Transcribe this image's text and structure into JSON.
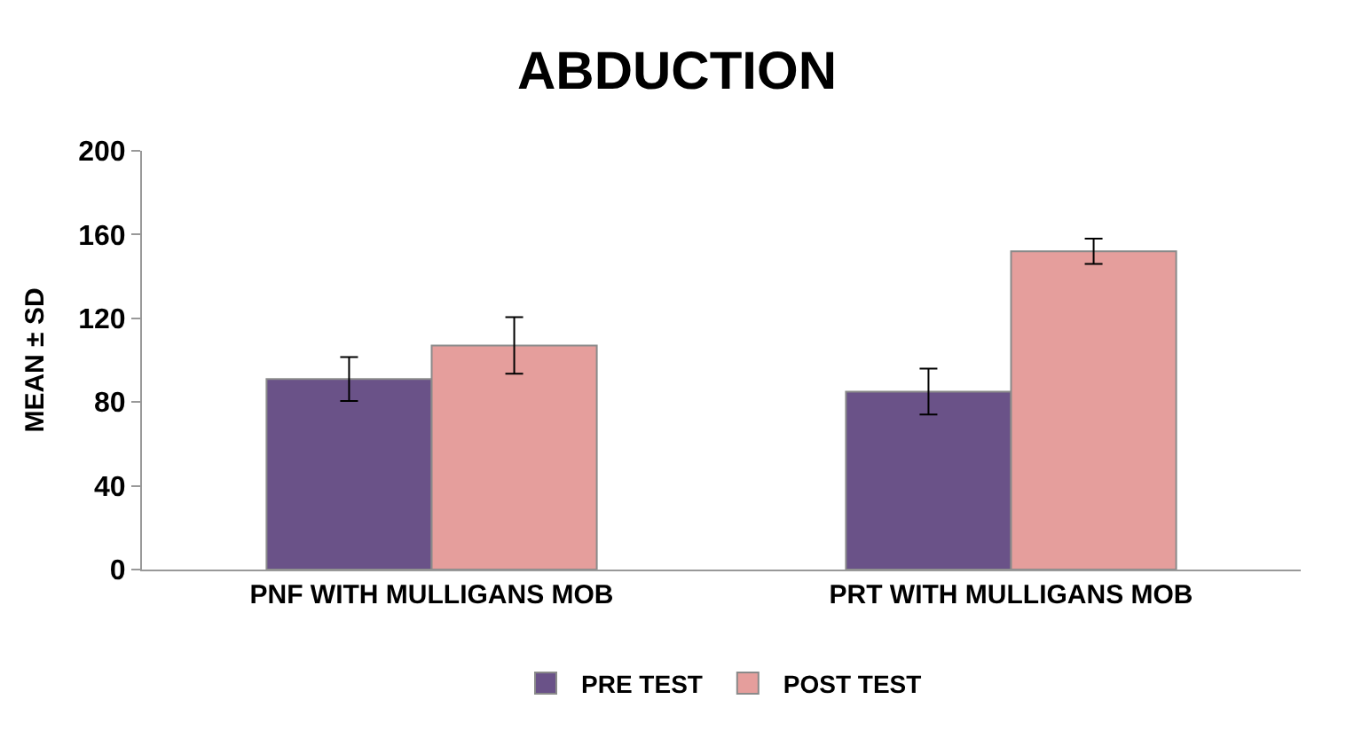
{
  "chart_data": {
    "type": "bar",
    "title": "ABDUCTION",
    "ylabel": "MEAN ± SD",
    "categories": [
      "PNF WITH MULLIGANS MOB",
      "PRT WITH MULLIGANS MOB"
    ],
    "series": [
      {
        "name": "PRE TEST",
        "color": "#6a5288",
        "values": [
          91,
          85
        ],
        "errors": [
          10.5,
          11
        ]
      },
      {
        "name": "POST TEST",
        "color": "#e59e9c",
        "values": [
          107,
          152
        ],
        "errors": [
          13.5,
          6
        ]
      }
    ],
    "ylim": [
      0,
      200
    ],
    "yticks": [
      0,
      40,
      80,
      120,
      160,
      200
    ],
    "legend": "bottom"
  }
}
